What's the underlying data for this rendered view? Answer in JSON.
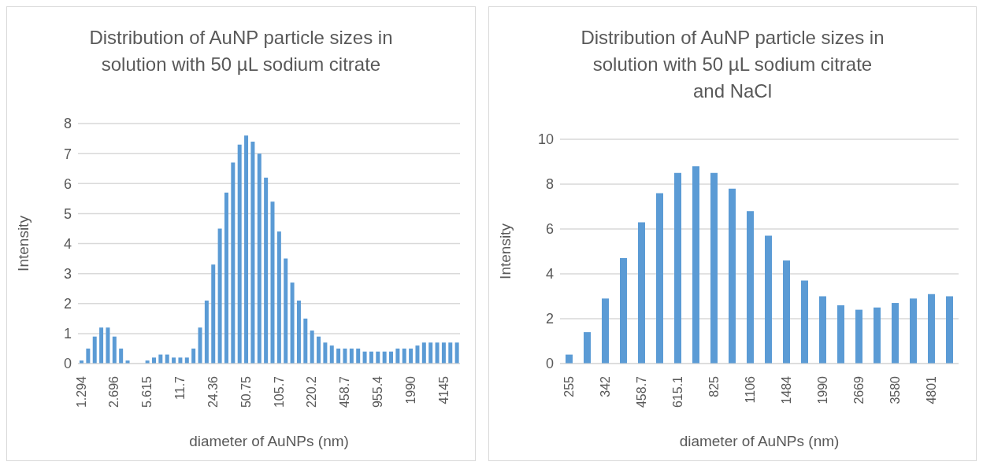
{
  "chart_data": [
    {
      "type": "bar",
      "title": "Distribution of AuNP particle sizes in solution with 50 µL sodium citrate",
      "xlabel": "diameter of AuNPs  (nm)",
      "ylabel": "Intensity",
      "categories": [
        "1.294",
        null,
        null,
        null,
        null,
        "2.696",
        null,
        null,
        null,
        null,
        "5.615",
        null,
        null,
        null,
        null,
        "11.7",
        null,
        null,
        null,
        null,
        "24.36",
        null,
        null,
        null,
        null,
        "50.75",
        null,
        null,
        null,
        null,
        "105.7",
        null,
        null,
        null,
        null,
        "220.2",
        null,
        null,
        null,
        null,
        "458.7",
        null,
        null,
        null,
        null,
        "955.4",
        null,
        null,
        null,
        null,
        "1990",
        null,
        null,
        null,
        null,
        "4145",
        null,
        null
      ],
      "values": [
        0.1,
        0.5,
        0.9,
        1.2,
        1.2,
        0.9,
        0.5,
        0.1,
        0,
        0,
        0.1,
        0.2,
        0.3,
        0.3,
        0.2,
        0.2,
        0.2,
        0.5,
        1.2,
        2.1,
        3.3,
        4.5,
        5.7,
        6.7,
        7.3,
        7.6,
        7.4,
        7.0,
        6.2,
        5.4,
        4.4,
        3.5,
        2.7,
        2.1,
        1.5,
        1.1,
        0.9,
        0.7,
        0.6,
        0.5,
        0.5,
        0.5,
        0.5,
        0.4,
        0.4,
        0.4,
        0.4,
        0.4,
        0.5,
        0.5,
        0.5,
        0.6,
        0.7,
        0.7,
        0.7,
        0.7,
        0.7,
        0.7
      ],
      "color": "#5b9bd5",
      "ylim": [
        0,
        8
      ],
      "yticks": [
        0,
        1,
        2,
        3,
        4,
        5,
        6,
        7,
        8
      ],
      "grid": "y"
    },
    {
      "type": "bar",
      "title": "Distribution of AuNP particle sizes in solution with 50 µL sodium citrate and NaCl",
      "xlabel": "diameter of AuNPs (nm)",
      "ylabel": "Intensity",
      "categories": [
        "255",
        null,
        "342",
        null,
        "458.7",
        null,
        "615.1",
        null,
        "825",
        null,
        "1106",
        null,
        "1484",
        null,
        "1990",
        null,
        "2669",
        null,
        "3580",
        null,
        "4801",
        null
      ],
      "values": [
        0.4,
        1.4,
        2.9,
        4.7,
        6.3,
        7.6,
        8.5,
        8.8,
        8.5,
        7.8,
        6.8,
        5.7,
        4.6,
        3.7,
        3.0,
        2.6,
        2.4,
        2.5,
        2.7,
        2.9,
        3.1,
        3.0
      ],
      "color": "#5b9bd5",
      "ylim": [
        0,
        10
      ],
      "yticks": [
        0,
        2,
        4,
        6,
        8,
        10
      ],
      "grid": "y"
    }
  ]
}
